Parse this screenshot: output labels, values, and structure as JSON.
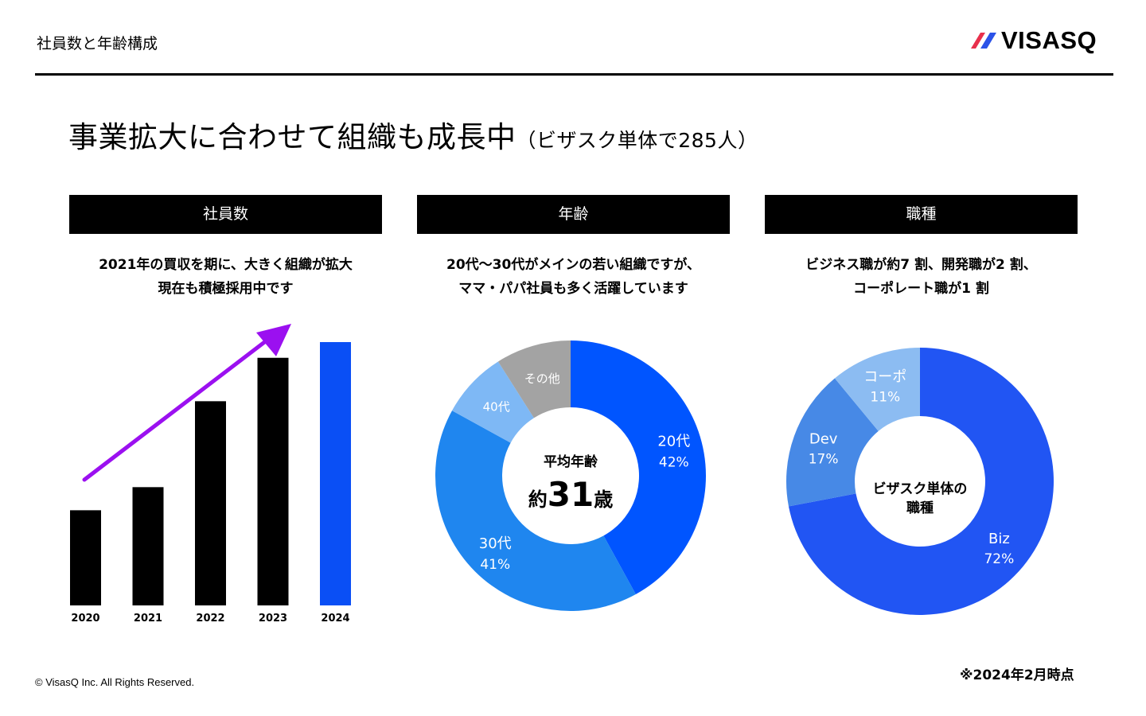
{
  "header": {
    "page_label": "社員数と年齢構成",
    "logo_text": "VISASQ"
  },
  "headline": {
    "main": "事業拡大に合わせて組織も成長中",
    "sub": "（ビザスク単体で285人）"
  },
  "panels": [
    {
      "title": "社員数",
      "description_lines": [
        "2021年の買収を期に、大きく組織が拡大",
        "現在も積極採用中です"
      ]
    },
    {
      "title": "年齢",
      "description_lines": [
        "20代～30代がメインの若い組織ですが、",
        "ママ・パパ社員も多く活躍しています"
      ],
      "center_label": "平均年齢",
      "center_value_prefix": "約",
      "center_value_number": "31",
      "center_value_suffix": "歳"
    },
    {
      "title": "職種",
      "description_lines": [
        "ビジネス職が約7 割、開発職が2 割、",
        "コーポレート職が1 割"
      ],
      "center_lines": [
        "ビザスク単体の",
        "職種"
      ]
    }
  ],
  "chart_data": [
    {
      "type": "bar",
      "categories": [
        "2020",
        "2021",
        "2022",
        "2023",
        "2024"
      ],
      "values": [
        103,
        128,
        221,
        268,
        285
      ],
      "ylim": [
        0,
        300
      ],
      "colors": [
        "#000000",
        "#000000",
        "#000000",
        "#000000",
        "#0a4ff5"
      ],
      "arrow_color": "#9b10f0"
    },
    {
      "type": "pie",
      "donut": true,
      "slices": [
        {
          "label": "20代",
          "value": 42,
          "display": "42%",
          "color": "#0055ff"
        },
        {
          "label": "30代",
          "value": 41,
          "display": "41%",
          "color": "#1f86ef"
        },
        {
          "label": "40代",
          "value": 8,
          "display": "",
          "color": "#7eb8f5"
        },
        {
          "label": "その他",
          "value": 9,
          "display": "",
          "color": "#a3a3a3"
        }
      ]
    },
    {
      "type": "pie",
      "donut": true,
      "slices": [
        {
          "label": "Biz",
          "value": 72,
          "display": "72%",
          "color": "#2155f3"
        },
        {
          "label": "Dev",
          "value": 17,
          "display": "17%",
          "color": "#4789e6"
        },
        {
          "label": "コーポ",
          "value": 11,
          "display": "11%",
          "color": "#8cbcf2"
        }
      ]
    }
  ],
  "footer": {
    "copyright": "© VisasQ Inc. All Rights Reserved.",
    "note": "※2024年2月時点"
  }
}
